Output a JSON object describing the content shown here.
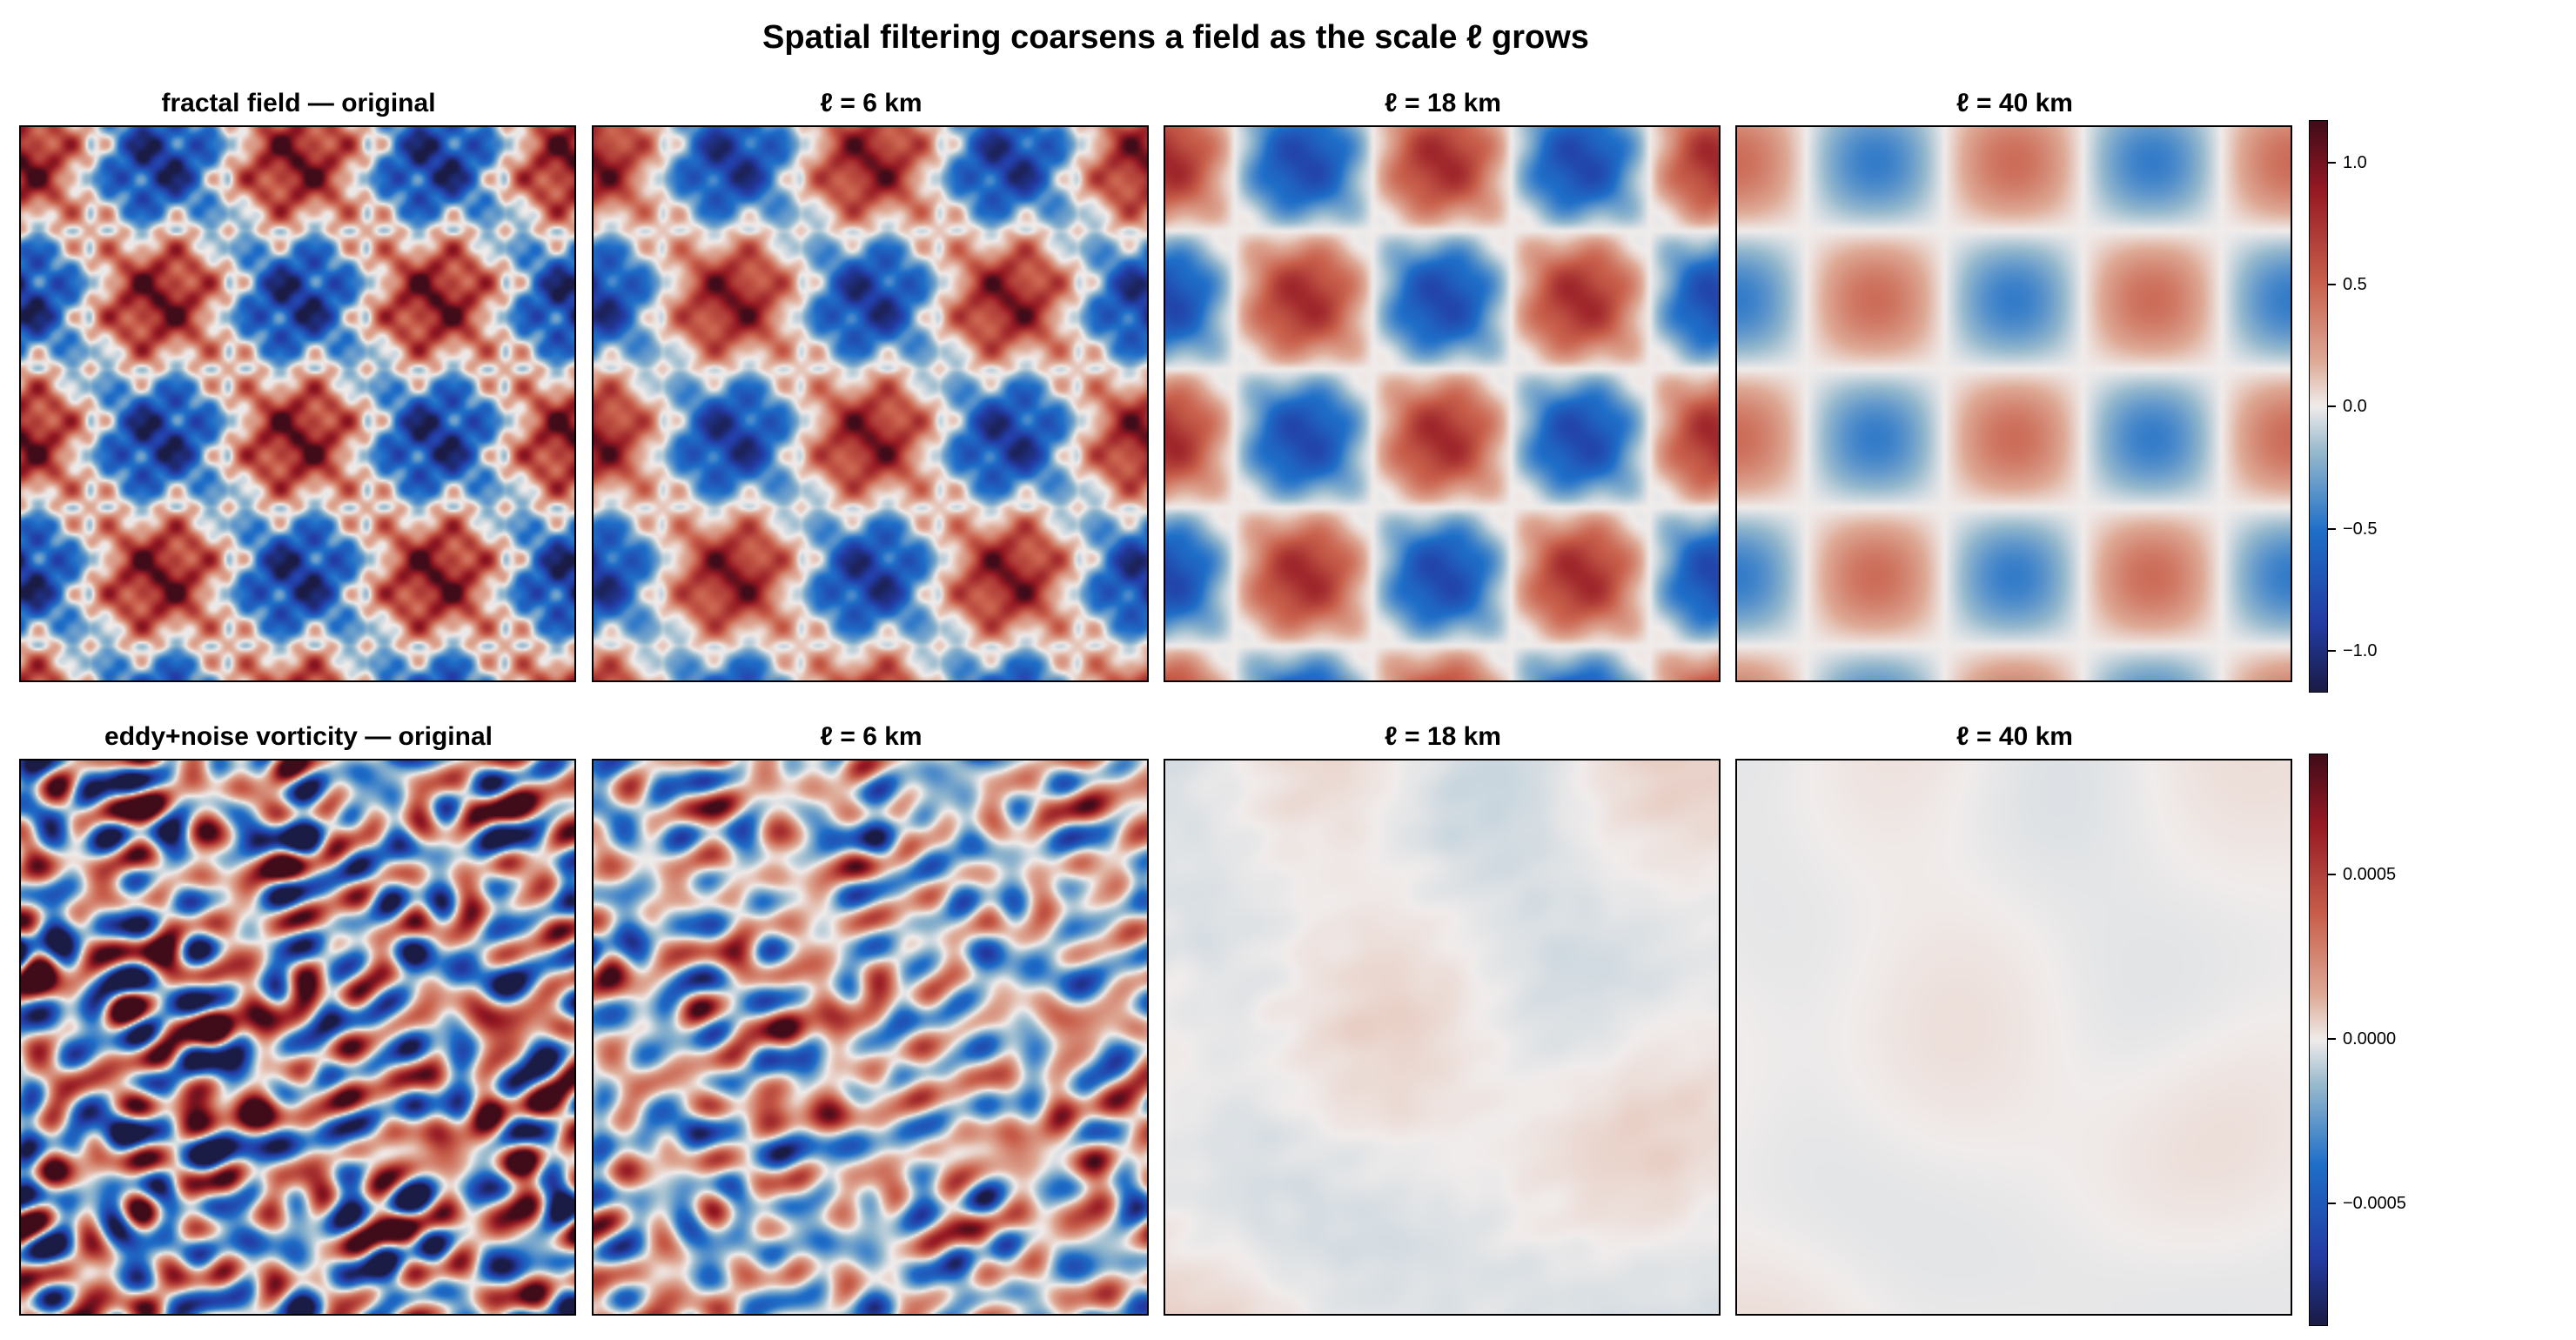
{
  "title": "Spatial filtering coarsens a field as the scale ℓ grows",
  "chart_data": [
    {
      "type": "heatmap",
      "row": "fractal",
      "panels": [
        {
          "title": "fractal field — original",
          "smoothing": 0,
          "amplitude": 1.0
        },
        {
          "title": "ℓ = 6 km",
          "smoothing": 6,
          "amplitude": 0.95
        },
        {
          "title": "ℓ = 18 km",
          "smoothing": 18,
          "amplitude": 0.8
        },
        {
          "title": "ℓ = 40 km",
          "smoothing": 40,
          "amplitude": 0.45
        }
      ],
      "colormap": "diverging blue-white-red (balance)",
      "colorbar": {
        "range": [
          -1.17,
          1.17
        ],
        "ticks": [
          1.0,
          0.5,
          0.0,
          -0.5,
          -1.0
        ],
        "tick_labels": [
          "1.0",
          "0.5",
          "0.0",
          "−0.5",
          "−1.0"
        ]
      }
    },
    {
      "type": "heatmap",
      "row": "vorticity",
      "panels": [
        {
          "title": "eddy+noise vorticity — original",
          "smoothing": 0,
          "amplitude": 1.0
        },
        {
          "title": "ℓ = 6 km",
          "smoothing": 6,
          "amplitude": 0.85
        },
        {
          "title": "ℓ = 18 km",
          "smoothing": 18,
          "amplitude": 0.32
        },
        {
          "title": "ℓ = 40 km",
          "smoothing": 40,
          "amplitude": 0.12
        }
      ],
      "colormap": "diverging blue-white-red (balance)",
      "colorbar": {
        "range": [
          -0.00087,
          0.00087
        ],
        "ticks": [
          0.0005,
          0.0,
          -0.0005
        ],
        "tick_labels": [
          "0.0005",
          "0.0000",
          "−0.0005"
        ]
      }
    }
  ]
}
